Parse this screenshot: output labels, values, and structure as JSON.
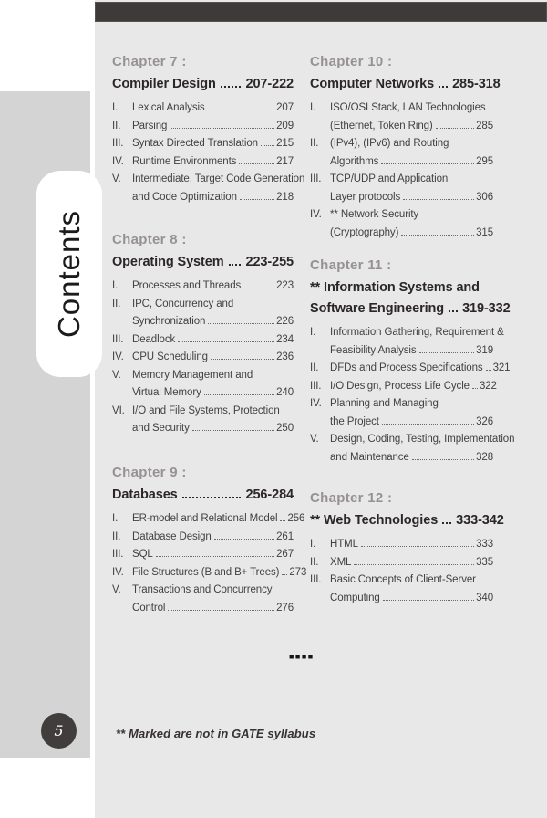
{
  "sidebar": {
    "contents_label": "Contents"
  },
  "footer": {
    "page_number": "5",
    "note": "** Marked are not in GATE syllabus",
    "end_marker": "■■■■"
  },
  "colors": {
    "top_bar": "#3e3a3a",
    "panel_background": "#e9e8e8",
    "side_column": "#d5d4d4",
    "page_badge": "#413d3d",
    "chapter_label_gray": "#969292",
    "title_dark": "#2b2727"
  },
  "toc": {
    "columns": [
      {
        "chapters": [
          {
            "label": "Chapter 7 :",
            "title_lines": [
              {
                "text": "Compiler Design",
                "pages": "207-222"
              }
            ],
            "items": [
              {
                "num": "I.",
                "lines": [
                  {
                    "text": "Lexical Analysis",
                    "page": "207"
                  }
                ]
              },
              {
                "num": "II.",
                "lines": [
                  {
                    "text": "Parsing",
                    "page": "209"
                  }
                ]
              },
              {
                "num": "III.",
                "lines": [
                  {
                    "text": "Syntax Directed Translation",
                    "page": "215"
                  }
                ]
              },
              {
                "num": "IV.",
                "lines": [
                  {
                    "text": "Runtime Environments",
                    "page": "217"
                  }
                ]
              },
              {
                "num": "V.",
                "lines": [
                  {
                    "text": "Intermediate, Target Code Generation"
                  },
                  {
                    "text": "and Code Optimization",
                    "page": "218"
                  }
                ]
              }
            ]
          },
          {
            "label": "Chapter 8 :",
            "title_lines": [
              {
                "text": "Operating System",
                "pages": "223-255"
              }
            ],
            "items": [
              {
                "num": "I.",
                "lines": [
                  {
                    "text": "Processes and Threads",
                    "page": "223"
                  }
                ]
              },
              {
                "num": "II.",
                "lines": [
                  {
                    "text": "IPC, Concurrency and"
                  },
                  {
                    "text": "Synchronization",
                    "page": "226"
                  }
                ]
              },
              {
                "num": "III.",
                "lines": [
                  {
                    "text": "Deadlock",
                    "page": "234"
                  }
                ]
              },
              {
                "num": "IV.",
                "lines": [
                  {
                    "text": "CPU Scheduling",
                    "page": "236"
                  }
                ]
              },
              {
                "num": "V.",
                "lines": [
                  {
                    "text": "Memory Management and"
                  },
                  {
                    "text": "Virtual Memory",
                    "page": "240"
                  }
                ]
              },
              {
                "num": "VI.",
                "lines": [
                  {
                    "text": "I/O and File Systems, Protection"
                  },
                  {
                    "text": "and Security",
                    "page": "250"
                  }
                ]
              }
            ]
          },
          {
            "label": "Chapter 9 :",
            "title_lines": [
              {
                "text": "Databases",
                "pages": "256-284"
              }
            ],
            "items": [
              {
                "num": "I.",
                "lines": [
                  {
                    "text": "ER-model and Relational Model",
                    "page": "256"
                  }
                ]
              },
              {
                "num": "II.",
                "lines": [
                  {
                    "text": "Database Design",
                    "page": "261"
                  }
                ]
              },
              {
                "num": "III.",
                "lines": [
                  {
                    "text": "SQL",
                    "page": "267"
                  }
                ]
              },
              {
                "num": "IV.",
                "lines": [
                  {
                    "text": "File Structures (B and B+ Trees)",
                    "page": "273"
                  }
                ]
              },
              {
                "num": "V.",
                "lines": [
                  {
                    "text": "Transactions and Concurrency"
                  },
                  {
                    "text": "Control",
                    "page": "276"
                  }
                ]
              }
            ]
          }
        ]
      },
      {
        "chapters": [
          {
            "label": "Chapter 10 :",
            "title_lines": [
              {
                "text": "Computer Networks",
                "pages": "285-318"
              }
            ],
            "items": [
              {
                "num": "I.",
                "lines": [
                  {
                    "text": "ISO/OSI Stack, LAN Technologies"
                  },
                  {
                    "text": "(Ethernet, Token Ring)",
                    "page": "285"
                  }
                ]
              },
              {
                "num": "II.",
                "lines": [
                  {
                    "text": "(IPv4), (IPv6) and Routing"
                  },
                  {
                    "text": "Algorithms",
                    "page": "295"
                  }
                ]
              },
              {
                "num": "III.",
                "lines": [
                  {
                    "text": "TCP/UDP and Application"
                  },
                  {
                    "text": "Layer protocols",
                    "page": "306"
                  }
                ]
              },
              {
                "num": "IV.",
                "lines": [
                  {
                    "text": "** Network Security"
                  },
                  {
                    "text": "(Cryptography)",
                    "page": "315"
                  }
                ]
              }
            ]
          },
          {
            "label": "Chapter 11 :",
            "title_lines": [
              {
                "text": "** Information Systems and"
              },
              {
                "text": "Software Engineering",
                "pages": "319-332"
              }
            ],
            "items": [
              {
                "num": "I.",
                "lines": [
                  {
                    "text": "Information Gathering, Requirement &"
                  },
                  {
                    "text": "Feasibility Analysis",
                    "page": "319"
                  }
                ]
              },
              {
                "num": "II.",
                "lines": [
                  {
                    "text": "DFDs and Process Specifications",
                    "page": "321"
                  }
                ]
              },
              {
                "num": "III.",
                "lines": [
                  {
                    "text": "I/O Design, Process Life Cycle",
                    "page": "322"
                  }
                ]
              },
              {
                "num": "IV.",
                "lines": [
                  {
                    "text": "Planning and Managing"
                  },
                  {
                    "text": "the Project",
                    "page": "326"
                  }
                ]
              },
              {
                "num": "V.",
                "lines": [
                  {
                    "text": "Design, Coding, Testing, Implementation"
                  },
                  {
                    "text": "and Maintenance",
                    "page": "328"
                  }
                ]
              }
            ]
          },
          {
            "label": "Chapter 12 :",
            "title_lines": [
              {
                "text": "** Web Technologies",
                "pages": "333-342"
              }
            ],
            "items": [
              {
                "num": "I.",
                "lines": [
                  {
                    "text": "HTML",
                    "page": "333"
                  }
                ]
              },
              {
                "num": "II.",
                "lines": [
                  {
                    "text": "XML",
                    "page": "335"
                  }
                ]
              },
              {
                "num": "III.",
                "lines": [
                  {
                    "text": "Basic Concepts of Client-Server"
                  },
                  {
                    "text": "Computing",
                    "page": "340"
                  }
                ]
              }
            ]
          }
        ]
      }
    ]
  }
}
